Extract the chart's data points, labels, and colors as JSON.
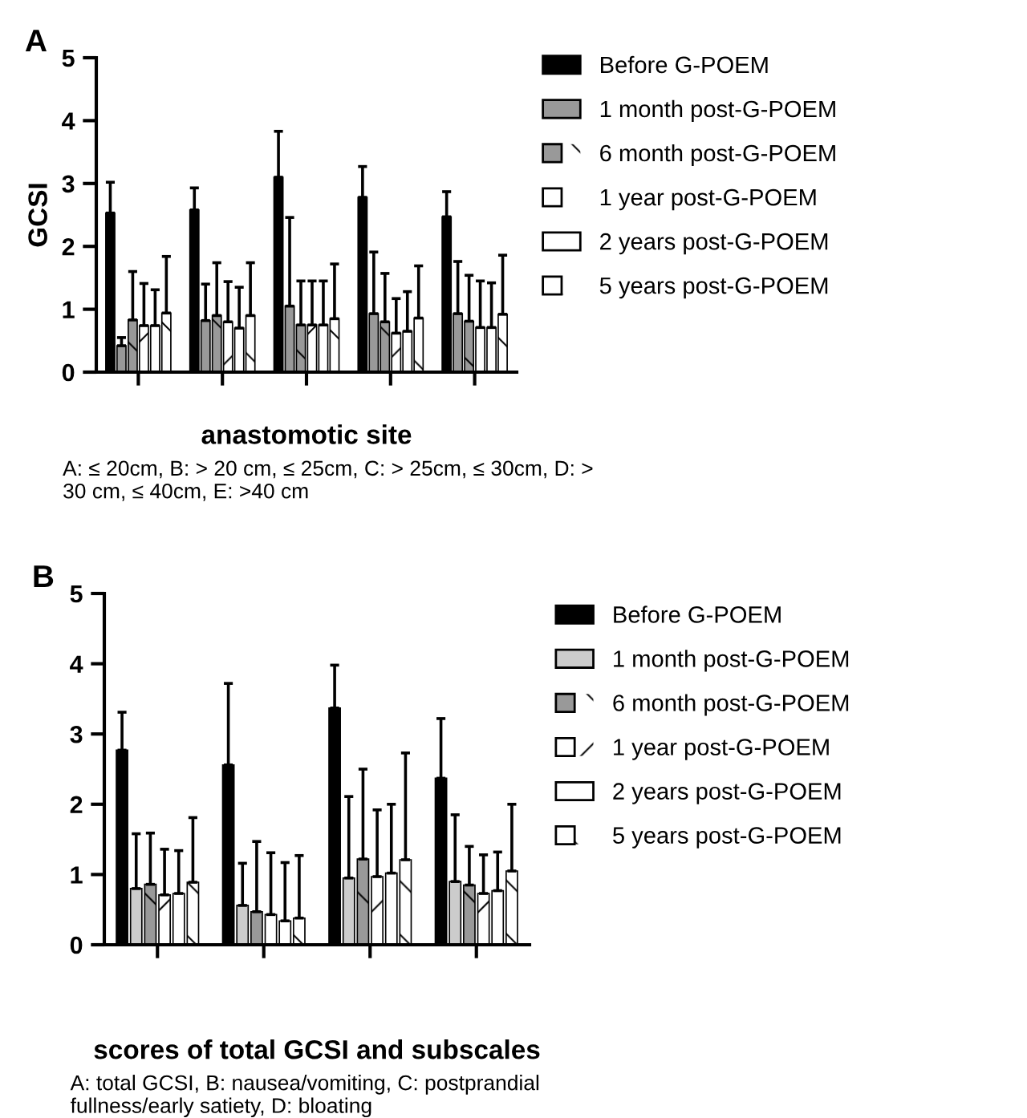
{
  "chart_data": [
    {
      "type": "bar",
      "title": "A",
      "ylabel": "GCSI",
      "xlabel": "anastomotic site",
      "categories": [
        null,
        null,
        null,
        null,
        null
      ],
      "ylim": [
        0,
        5
      ],
      "yticks": [
        0,
        1,
        2,
        3,
        4,
        5
      ],
      "grid": false,
      "legend": "right",
      "annotations": [
        "A: ≤ 20cm, B: > 20 cm, ≤ 25cm, C: > 25cm, ≤ 30cm, D: > 30 cm, ≤ 40cm, E: >40 cm"
      ],
      "series": [
        {
          "name": "Before G-POEM",
          "color": "#000000",
          "values": [
            2.53,
            2.58,
            3.1,
            2.78,
            2.47
          ],
          "errors": [
            [
              2.53,
              3.02
            ],
            [
              2.58,
              2.93
            ],
            [
              3.1,
              3.83
            ],
            [
              2.78,
              3.27
            ],
            [
              2.47,
              2.87
            ]
          ]
        },
        {
          "name": "1 month post-G-POEM",
          "color": "#999999",
          "values": [
            0.42,
            0.82,
            1.05,
            0.93,
            0.93
          ],
          "errors": [
            [
              0.42,
              0.55
            ],
            [
              0.82,
              1.4
            ],
            [
              1.05,
              2.46
            ],
            [
              0.93,
              1.91
            ],
            [
              0.93,
              1.76
            ]
          ]
        },
        {
          "name": "6 month post-G-POEM",
          "color": "#999999",
          "values": [
            0.83,
            0.9,
            0.75,
            0.8,
            0.81
          ],
          "errors": [
            [
              0.83,
              1.6
            ],
            [
              0.9,
              1.74
            ],
            [
              0.75,
              1.45
            ],
            [
              0.8,
              1.57
            ],
            [
              0.81,
              1.54
            ]
          ]
        },
        {
          "name": "1 year post-G-POEM",
          "color": "#ffffff",
          "values": [
            0.74,
            0.8,
            0.75,
            0.62,
            0.71
          ],
          "errors": [
            [
              0.74,
              1.41
            ],
            [
              0.8,
              1.44
            ],
            [
              0.75,
              1.45
            ],
            [
              0.62,
              1.17
            ],
            [
              0.71,
              1.45
            ]
          ]
        },
        {
          "name": "2 years post-G-POEM",
          "color": "#ffffff",
          "values": [
            0.74,
            0.7,
            0.75,
            0.65,
            0.71
          ],
          "errors": [
            [
              0.74,
              1.31
            ],
            [
              0.7,
              1.35
            ],
            [
              0.75,
              1.45
            ],
            [
              0.65,
              1.28
            ],
            [
              0.71,
              1.42
            ]
          ]
        },
        {
          "name": "5 years post-G-POEM",
          "color": "#ffffff",
          "values": [
            0.94,
            0.9,
            0.85,
            0.86,
            0.92
          ],
          "errors": [
            [
              0.94,
              1.84
            ],
            [
              0.9,
              1.74
            ],
            [
              0.85,
              1.72
            ],
            [
              0.86,
              1.69
            ],
            [
              0.92,
              1.86
            ]
          ]
        }
      ]
    },
    {
      "type": "bar",
      "title": "B",
      "xlabel": "scores of total GCSI and subscales",
      "categories": [
        null,
        null,
        null,
        null
      ],
      "ylim": [
        0,
        5
      ],
      "yticks": [
        0,
        1,
        2,
        3,
        4,
        5
      ],
      "grid": false,
      "legend": "right",
      "annotations": [
        "A: total GCSI, B: nausea/vomiting, C: postprandial fullness/early satiety, D: bloating"
      ],
      "series": [
        {
          "name": "Before G-POEM",
          "color": "#000000",
          "values": [
            2.77,
            2.56,
            3.37,
            2.37
          ],
          "errors": [
            [
              2.77,
              3.31
            ],
            [
              2.56,
              3.72
            ],
            [
              3.37,
              3.98
            ],
            [
              2.37,
              3.22
            ]
          ]
        },
        {
          "name": "1 month post-G-POEM",
          "color": "#cccccc",
          "values": [
            0.8,
            0.56,
            0.95,
            0.9
          ],
          "errors": [
            [
              0.8,
              1.58
            ],
            [
              0.56,
              1.16
            ],
            [
              0.95,
              2.11
            ],
            [
              0.9,
              1.85
            ]
          ]
        },
        {
          "name": "6 month post-G-POEM",
          "color": "#999999",
          "values": [
            0.86,
            0.47,
            1.22,
            0.85
          ],
          "errors": [
            [
              0.86,
              1.59
            ],
            [
              0.47,
              1.47
            ],
            [
              1.22,
              2.5
            ],
            [
              0.85,
              1.4
            ]
          ]
        },
        {
          "name": "1 year post-G-POEM",
          "color": "#ffffff",
          "values": [
            0.71,
            0.43,
            0.97,
            0.73
          ],
          "errors": [
            [
              0.71,
              1.36
            ],
            [
              0.43,
              1.31
            ],
            [
              0.97,
              1.92
            ],
            [
              0.73,
              1.28
            ]
          ]
        },
        {
          "name": "2 years post-G-POEM",
          "color": "#ffffff",
          "values": [
            0.73,
            0.34,
            1.02,
            0.77
          ],
          "errors": [
            [
              0.73,
              1.34
            ],
            [
              0.34,
              1.17
            ],
            [
              1.02,
              2.0
            ],
            [
              0.77,
              1.32
            ]
          ]
        },
        {
          "name": "5 years post-G-POEM",
          "color": "#ffffff",
          "values": [
            0.89,
            0.38,
            1.21,
            1.05
          ],
          "errors": [
            [
              0.89,
              1.81
            ],
            [
              0.38,
              1.27
            ],
            [
              1.21,
              2.73
            ],
            [
              1.05,
              2.0
            ]
          ]
        }
      ]
    }
  ]
}
